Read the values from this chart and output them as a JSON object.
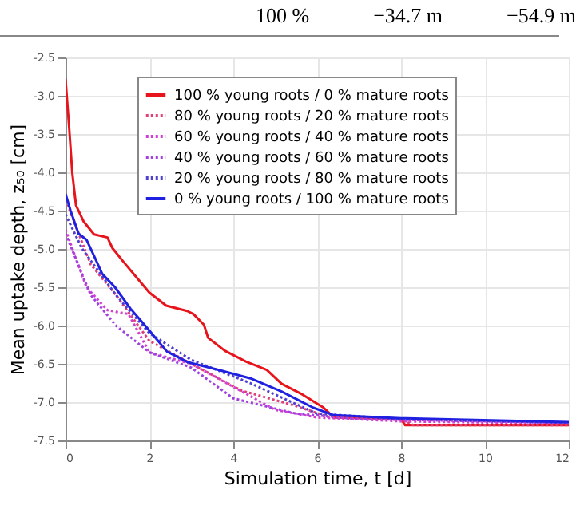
{
  "chart_data": {
    "type": "line",
    "xlabel": "Simulation time, t [d]",
    "ylabel": "Mean  uptake depth, z₅₀ [cm]",
    "annotations": [
      "100 %",
      "−34.7 m",
      "−54.9 m"
    ],
    "xlim": [
      0,
      12
    ],
    "xticks": [
      0,
      2,
      4,
      6,
      8,
      10,
      12
    ],
    "ylim": [
      -7.5,
      -2.5
    ],
    "yticks": [
      {
        "value": -7.5,
        "label": "-7.5"
      },
      {
        "value": -7,
        "label": "-7.0"
      },
      {
        "value": -6.5,
        "label": "-6.5"
      },
      {
        "value": -6,
        "label": "-6.0"
      },
      {
        "value": -5.5,
        "label": "-5.5"
      },
      {
        "value": -5,
        "label": "-5.0"
      },
      {
        "value": -4.5,
        "label": "-4.5"
      },
      {
        "value": -4,
        "label": "-4.0"
      },
      {
        "value": -3.5,
        "label": "-3.5"
      },
      {
        "value": -3,
        "label": "-3.0"
      },
      {
        "value": -2.5,
        "label": "-2.5"
      }
    ],
    "grid": true,
    "legend": "top",
    "series": [
      {
        "name": "100 % young roots / 0 % mature roots",
        "color": "#e8141c",
        "line_style": "solid",
        "x": [
          0,
          0.09,
          0.16,
          0.25,
          0.43,
          0.68,
          1.0,
          1.12,
          1.37,
          2.0,
          2.4,
          2.9,
          3.05,
          3.3,
          3.4,
          3.8,
          4.3,
          4.8,
          5.15,
          5.65,
          6.15,
          6.4,
          8.0,
          8.1,
          12
        ],
        "values": [
          -2.78,
          -3.44,
          -4.0,
          -4.43,
          -4.64,
          -4.81,
          -4.85,
          -4.99,
          -5.16,
          -5.57,
          -5.74,
          -5.81,
          -5.85,
          -5.99,
          -6.16,
          -6.33,
          -6.47,
          -6.58,
          -6.76,
          -6.9,
          -7.07,
          -7.2,
          -7.22,
          -7.3,
          -7.3
        ]
      },
      {
        "name": "80 % young roots / 20 % mature roots",
        "color": "#e0407a",
        "line_style": "dotted",
        "x": [
          0,
          0.1,
          0.6,
          1.2,
          2.0,
          3.0,
          4.2,
          5.5,
          6.3,
          8.0,
          8.3,
          12
        ],
        "values": [
          -4.3,
          -4.5,
          -5.2,
          -5.6,
          -6.2,
          -6.5,
          -6.85,
          -7.05,
          -7.2,
          -7.22,
          -7.3,
          -7.3
        ]
      },
      {
        "name": "60 % young roots / 40 % mature roots",
        "color": "#d040d0",
        "line_style": "dotted",
        "x": [
          0,
          0.5,
          1.0,
          1.5,
          2.0,
          3.0,
          4.0,
          5.0,
          6.0,
          8.0,
          12
        ],
        "values": [
          -4.75,
          -5.5,
          -5.8,
          -5.85,
          -6.35,
          -6.5,
          -6.8,
          -7.1,
          -7.2,
          -7.25,
          -7.28
        ]
      },
      {
        "name": "40 % young roots / 60 % mature roots",
        "color": "#a040e0",
        "line_style": "dotted",
        "x": [
          0,
          0.6,
          1.2,
          2.0,
          3.0,
          4.0,
          5.5,
          7.0,
          12
        ],
        "values": [
          -4.8,
          -5.6,
          -6.0,
          -6.35,
          -6.55,
          -6.95,
          -7.15,
          -7.22,
          -7.27
        ]
      },
      {
        "name": "20 % young roots / 80 % mature roots",
        "color": "#5040d0",
        "line_style": "dotted",
        "x": [
          0,
          0.4,
          1.2,
          2.0,
          3.0,
          4.4,
          5.2,
          6.0,
          8.0,
          12
        ],
        "values": [
          -4.55,
          -5.0,
          -5.6,
          -6.1,
          -6.45,
          -6.75,
          -6.95,
          -7.15,
          -7.22,
          -7.27
        ]
      },
      {
        "name": "0 % young roots / 100 % mature roots",
        "color": "#2020e0",
        "line_style": "solid",
        "x": [
          0,
          0.12,
          0.31,
          0.5,
          0.68,
          0.87,
          1.18,
          1.55,
          1.93,
          2.42,
          2.92,
          3.66,
          4.41,
          5.15,
          5.9,
          6.4,
          8.0,
          12
        ],
        "values": [
          -4.28,
          -4.5,
          -4.8,
          -4.88,
          -5.09,
          -5.32,
          -5.5,
          -5.78,
          -6.02,
          -6.34,
          -6.48,
          -6.58,
          -6.69,
          -6.86,
          -7.07,
          -7.17,
          -7.21,
          -7.26
        ]
      }
    ]
  }
}
